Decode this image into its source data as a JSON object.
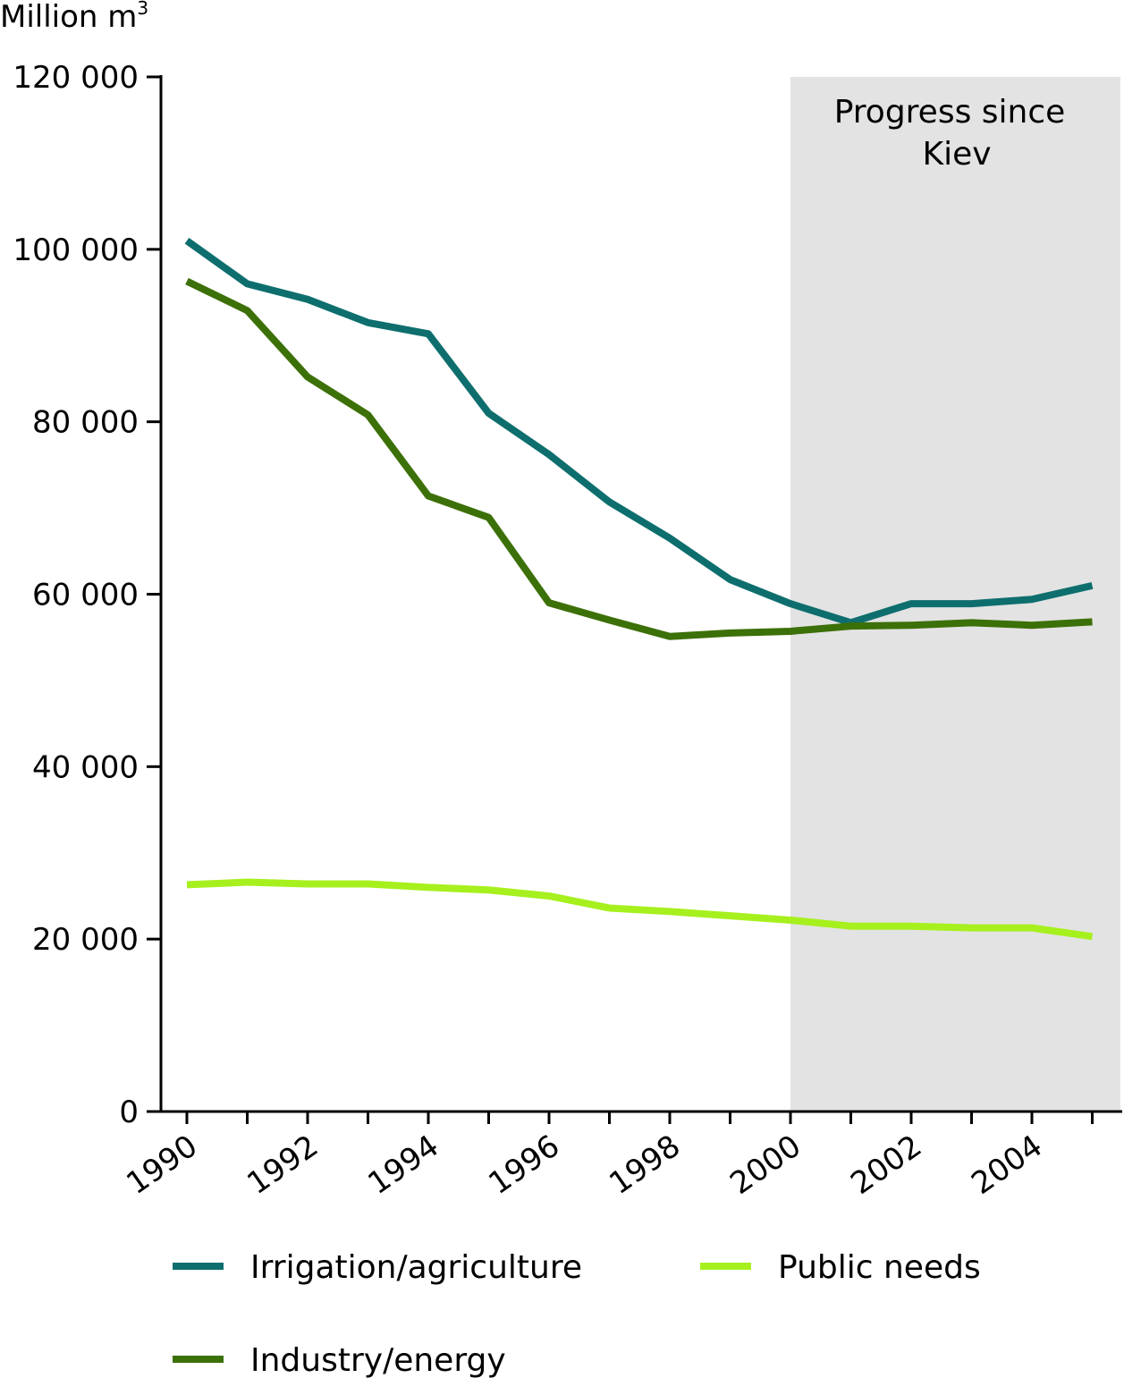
{
  "chart_data": {
    "type": "line",
    "y_unit": "Million m",
    "y_unit_superscript": "3",
    "x": [
      1990,
      1991,
      1992,
      1993,
      1994,
      1995,
      1996,
      1997,
      1998,
      1999,
      2000,
      2001,
      2002,
      2003,
      2004,
      2005
    ],
    "xticks": [
      "1990",
      "1992",
      "1994",
      "1996",
      "1998",
      "2000",
      "2002",
      "2004"
    ],
    "ylim": [
      0,
      120000
    ],
    "yticks": [
      "0",
      "20 000",
      "40 000",
      "60 000",
      "80 000",
      "100 000",
      "120 000"
    ],
    "grid": false,
    "highlight": {
      "from": 2000,
      "to": 2005.5,
      "label_lines": [
        "Progress since",
        "Kiev"
      ],
      "color": "#e3e3e3"
    },
    "legend_position": "bottom",
    "series": [
      {
        "name": "Irrigation/agriculture",
        "color": "#0e6e6e",
        "values": [
          101000,
          96000,
          94200,
          91500,
          90200,
          81000,
          76200,
          70700,
          66500,
          61700,
          58900,
          56700,
          58900,
          58900,
          59400,
          61000
        ]
      },
      {
        "name": "Public needs",
        "color": "#a6f01e",
        "values": [
          26300,
          26600,
          26400,
          26400,
          26000,
          25700,
          25000,
          23600,
          23200,
          22700,
          22200,
          21500,
          21500,
          21300,
          21300,
          20300
        ]
      },
      {
        "name": "Industry/energy",
        "color": "#3c7008",
        "values": [
          96300,
          92900,
          85200,
          80800,
          71400,
          68900,
          59000,
          57000,
          55100,
          55500,
          55700,
          56300,
          56400,
          56700,
          56400,
          56800
        ]
      }
    ]
  }
}
